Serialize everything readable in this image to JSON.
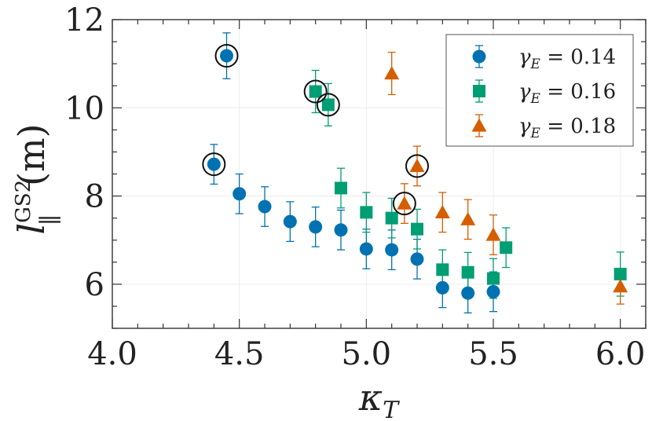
{
  "chart_data": {
    "type": "scatter",
    "title": "",
    "xlabel": "κ_T",
    "xlabel_main": "κ",
    "xlabel_sub": "T",
    "ylabel": "l_∥^GS2 (m)",
    "ylabel_main": "l",
    "ylabel_sup": "GS2",
    "ylabel_sub": "∥",
    "ylabel_unit": "(m)",
    "xlim": [
      4.0,
      6.1
    ],
    "ylim": [
      5.0,
      12.0
    ],
    "xticks": [
      4.0,
      4.5,
      5.0,
      5.5,
      6.0
    ],
    "xtick_labels": [
      "4.0",
      "4.5",
      "5.0",
      "5.5",
      "6.0"
    ],
    "yticks": [
      6,
      8,
      10,
      12
    ],
    "ytick_labels": [
      "6",
      "8",
      "10",
      "12"
    ],
    "legend_position": "top-right",
    "series": [
      {
        "name": "γ_E = 0.14",
        "label_main": "γ",
        "label_sub": "E",
        "label_value": " = 0.14",
        "marker": "circle",
        "color": "#0072B2",
        "points": [
          {
            "x": 4.4,
            "y": 8.72,
            "err": 0.45,
            "highlighted": true
          },
          {
            "x": 4.45,
            "y": 11.18,
            "err": 0.52,
            "highlighted": true
          },
          {
            "x": 4.5,
            "y": 8.05,
            "err": 0.45,
            "highlighted": false
          },
          {
            "x": 4.6,
            "y": 7.76,
            "err": 0.45,
            "highlighted": false
          },
          {
            "x": 4.7,
            "y": 7.42,
            "err": 0.45,
            "highlighted": false
          },
          {
            "x": 4.8,
            "y": 7.3,
            "err": 0.45,
            "highlighted": false
          },
          {
            "x": 4.9,
            "y": 7.23,
            "err": 0.45,
            "highlighted": false
          },
          {
            "x": 5.0,
            "y": 6.8,
            "err": 0.45,
            "highlighted": false
          },
          {
            "x": 5.1,
            "y": 6.78,
            "err": 0.45,
            "highlighted": false
          },
          {
            "x": 5.2,
            "y": 6.57,
            "err": 0.45,
            "highlighted": false
          },
          {
            "x": 5.3,
            "y": 5.92,
            "err": 0.45,
            "highlighted": false
          },
          {
            "x": 5.4,
            "y": 5.8,
            "err": 0.45,
            "highlighted": false
          },
          {
            "x": 5.5,
            "y": 5.83,
            "err": 0.45,
            "highlighted": false
          }
        ]
      },
      {
        "name": "γ_E = 0.16",
        "label_main": "γ",
        "label_sub": "E",
        "label_value": " = 0.16",
        "marker": "square",
        "color": "#009E73",
        "points": [
          {
            "x": 4.8,
            "y": 10.37,
            "err": 0.48,
            "highlighted": true
          },
          {
            "x": 4.85,
            "y": 10.07,
            "err": 0.48,
            "highlighted": true
          },
          {
            "x": 4.9,
            "y": 8.18,
            "err": 0.45,
            "highlighted": false
          },
          {
            "x": 5.0,
            "y": 7.63,
            "err": 0.45,
            "highlighted": false
          },
          {
            "x": 5.1,
            "y": 7.5,
            "err": 0.45,
            "highlighted": false
          },
          {
            "x": 5.2,
            "y": 7.25,
            "err": 0.45,
            "highlighted": false
          },
          {
            "x": 5.3,
            "y": 6.33,
            "err": 0.45,
            "highlighted": false
          },
          {
            "x": 5.4,
            "y": 6.27,
            "err": 0.45,
            "highlighted": false
          },
          {
            "x": 5.5,
            "y": 6.13,
            "err": 0.45,
            "highlighted": false
          },
          {
            "x": 5.55,
            "y": 6.83,
            "err": 0.45,
            "highlighted": false
          },
          {
            "x": 6.0,
            "y": 6.23,
            "err": 0.5,
            "highlighted": false
          }
        ]
      },
      {
        "name": "γ_E = 0.18",
        "label_main": "γ",
        "label_sub": "E",
        "label_value": " = 0.18",
        "marker": "triangle",
        "color": "#D55E00",
        "points": [
          {
            "x": 5.1,
            "y": 10.78,
            "err": 0.48,
            "highlighted": false
          },
          {
            "x": 5.15,
            "y": 7.83,
            "err": 0.45,
            "highlighted": true
          },
          {
            "x": 5.2,
            "y": 8.68,
            "err": 0.45,
            "highlighted": true
          },
          {
            "x": 5.3,
            "y": 7.63,
            "err": 0.45,
            "highlighted": false
          },
          {
            "x": 5.4,
            "y": 7.47,
            "err": 0.45,
            "highlighted": false
          },
          {
            "x": 5.5,
            "y": 7.12,
            "err": 0.45,
            "highlighted": false
          },
          {
            "x": 6.0,
            "y": 5.95,
            "err": 0.4,
            "highlighted": false
          }
        ]
      }
    ]
  }
}
